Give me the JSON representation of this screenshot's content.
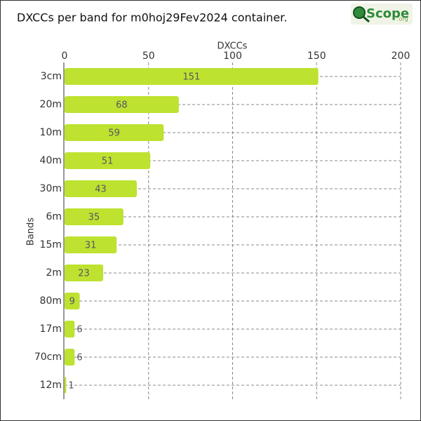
{
  "chart_data": {
    "type": "hbar",
    "title": "DXCCs per band for m0hoj29Fev2024 container.",
    "logo": {
      "text": "Scope",
      "suffix": ".org"
    },
    "x_label": "DXCCs",
    "y_label": "Bands",
    "categories": [
      "3cm",
      "20m",
      "10m",
      "40m",
      "30m",
      "6m",
      "15m",
      "2m",
      "80m",
      "17m",
      "70cm",
      "12m"
    ],
    "values": [
      151,
      68,
      59,
      51,
      43,
      35,
      31,
      23,
      9,
      6,
      6,
      1
    ],
    "color": "#bde22f",
    "xlim": [
      0,
      200
    ],
    "xticks": [
      0,
      50,
      100,
      150,
      200
    ],
    "grid": true
  }
}
